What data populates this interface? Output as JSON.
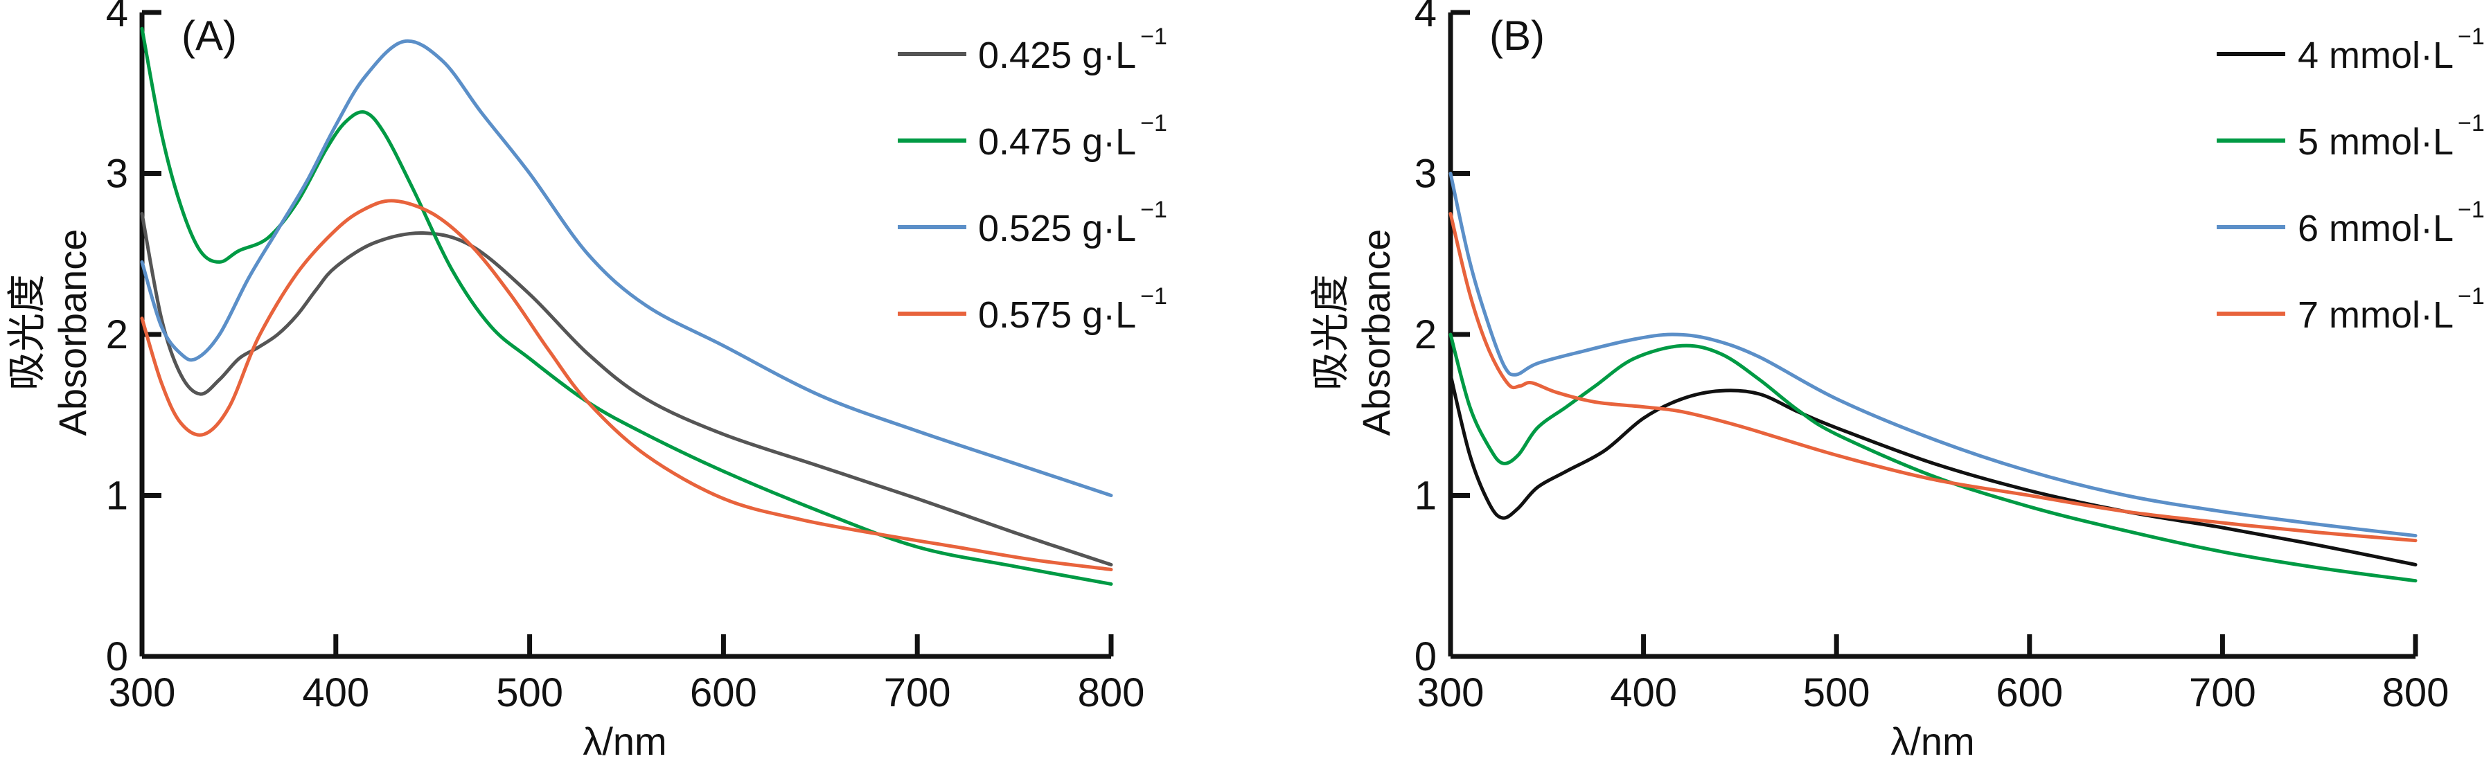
{
  "chart_data": [
    {
      "type": "line",
      "panel_label": "(A)",
      "xlabel": "λ/nm",
      "ylabel_cn": "吸光度",
      "ylabel": "Absorbance",
      "xlim": [
        300,
        800
      ],
      "ylim": [
        0,
        4
      ],
      "xticks": [
        300,
        400,
        500,
        600,
        700,
        800
      ],
      "yticks": [
        0,
        1,
        2,
        3,
        4
      ],
      "grid": false,
      "legend_position": "top-right",
      "series": [
        {
          "name": "0.425 g·L",
          "sup": "−1",
          "color": "#555555",
          "x": [
            300,
            310,
            320,
            330,
            340,
            350,
            360,
            370,
            380,
            390,
            400,
            420,
            445,
            470,
            500,
            530,
            560,
            600,
            650,
            700,
            750,
            800
          ],
          "y": [
            2.75,
            2.1,
            1.75,
            1.63,
            1.72,
            1.85,
            1.92,
            2.0,
            2.12,
            2.28,
            2.42,
            2.57,
            2.63,
            2.55,
            2.25,
            1.88,
            1.6,
            1.38,
            1.18,
            0.98,
            0.77,
            0.57
          ]
        },
        {
          "name": "0.475 g·L",
          "sup": "−1",
          "color": "#009a44",
          "x": [
            300,
            310,
            320,
            330,
            340,
            350,
            365,
            380,
            395,
            405,
            415,
            425,
            440,
            460,
            480,
            500,
            530,
            560,
            600,
            650,
            700,
            750,
            800
          ],
          "y": [
            3.9,
            3.25,
            2.8,
            2.52,
            2.45,
            2.52,
            2.6,
            2.82,
            3.15,
            3.32,
            3.38,
            3.25,
            2.9,
            2.4,
            2.05,
            1.85,
            1.58,
            1.38,
            1.15,
            0.9,
            0.68,
            0.56,
            0.45
          ]
        },
        {
          "name": "0.525 g·L",
          "sup": "−1",
          "color": "#5b8fc8",
          "x": [
            300,
            310,
            320,
            328,
            340,
            355,
            370,
            385,
            400,
            415,
            435,
            455,
            475,
            500,
            530,
            560,
            600,
            650,
            700,
            750,
            800
          ],
          "y": [
            2.45,
            2.05,
            1.88,
            1.85,
            2.0,
            2.35,
            2.65,
            2.95,
            3.3,
            3.6,
            3.82,
            3.7,
            3.38,
            3.0,
            2.5,
            2.18,
            1.93,
            1.62,
            1.4,
            1.2,
            1.0
          ]
        },
        {
          "name": "0.575 g·L",
          "sup": "−1",
          "color": "#e8633c",
          "x": [
            300,
            310,
            320,
            332,
            345,
            360,
            380,
            400,
            415,
            430,
            450,
            470,
            490,
            510,
            530,
            560,
            600,
            640,
            680,
            720,
            760,
            800
          ],
          "y": [
            2.1,
            1.7,
            1.45,
            1.38,
            1.55,
            1.98,
            2.38,
            2.65,
            2.78,
            2.83,
            2.75,
            2.55,
            2.25,
            1.9,
            1.58,
            1.25,
            0.98,
            0.85,
            0.76,
            0.68,
            0.6,
            0.54
          ]
        }
      ]
    },
    {
      "type": "line",
      "panel_label": "(B)",
      "xlabel": "λ/nm",
      "ylabel_cn": "吸光度",
      "ylabel": "Absorbance",
      "xlim": [
        300,
        800
      ],
      "ylim": [
        0,
        4
      ],
      "xticks": [
        300,
        400,
        500,
        600,
        700,
        800
      ],
      "yticks": [
        0,
        1,
        2,
        3,
        4
      ],
      "grid": false,
      "legend_position": "top-right",
      "series": [
        {
          "name": "4 mmol·L",
          "sup": "−1",
          "color": "#111111",
          "x": [
            300,
            310,
            320,
            327,
            335,
            345,
            360,
            380,
            400,
            420,
            440,
            460,
            480,
            500,
            550,
            600,
            650,
            700,
            750,
            800
          ],
          "y": [
            1.75,
            1.25,
            0.95,
            0.86,
            0.92,
            1.05,
            1.15,
            1.28,
            1.48,
            1.6,
            1.65,
            1.63,
            1.52,
            1.42,
            1.2,
            1.03,
            0.9,
            0.8,
            0.69,
            0.57
          ]
        },
        {
          "name": "5 mmol·L",
          "sup": "−1",
          "color": "#009a44",
          "x": [
            300,
            310,
            320,
            327,
            335,
            345,
            360,
            375,
            395,
            420,
            440,
            460,
            480,
            500,
            550,
            600,
            650,
            700,
            750,
            800
          ],
          "y": [
            2.0,
            1.55,
            1.3,
            1.2,
            1.25,
            1.42,
            1.55,
            1.68,
            1.85,
            1.93,
            1.88,
            1.72,
            1.53,
            1.38,
            1.12,
            0.93,
            0.78,
            0.65,
            0.55,
            0.47
          ]
        },
        {
          "name": "6 mmol·L",
          "sup": "−1",
          "color": "#5b8fc8",
          "x": [
            300,
            310,
            320,
            328,
            334,
            345,
            370,
            395,
            415,
            435,
            460,
            500,
            550,
            600,
            650,
            700,
            750,
            800
          ],
          "y": [
            3.0,
            2.45,
            2.05,
            1.8,
            1.75,
            1.82,
            1.9,
            1.97,
            2.0,
            1.97,
            1.86,
            1.6,
            1.35,
            1.15,
            1.0,
            0.9,
            0.82,
            0.75
          ]
        },
        {
          "name": "7 mmol·L",
          "sup": "−1",
          "color": "#e8633c",
          "x": [
            300,
            310,
            320,
            330,
            336,
            342,
            355,
            375,
            400,
            420,
            450,
            500,
            550,
            600,
            650,
            700,
            750,
            800
          ],
          "y": [
            2.75,
            2.25,
            1.9,
            1.69,
            1.68,
            1.7,
            1.64,
            1.58,
            1.55,
            1.52,
            1.43,
            1.25,
            1.1,
            1.0,
            0.9,
            0.83,
            0.77,
            0.72
          ]
        }
      ]
    }
  ]
}
